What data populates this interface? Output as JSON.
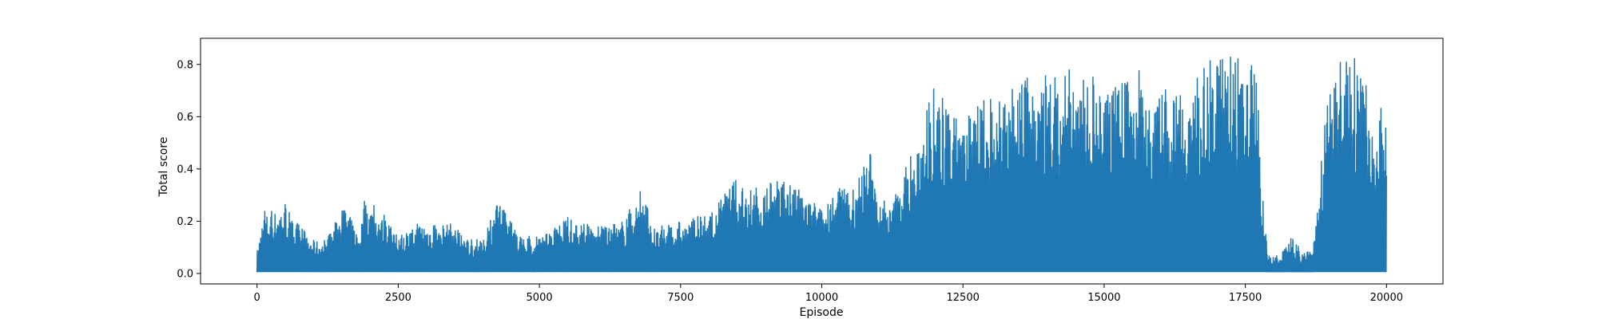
{
  "chart_data": {
    "type": "line",
    "title": "",
    "xlabel": "Episode",
    "ylabel": "Total score",
    "xlim": [
      -1000,
      21000
    ],
    "ylim": [
      -0.04,
      0.9
    ],
    "x_ticks": [
      0,
      2500,
      5000,
      7500,
      10000,
      12500,
      15000,
      17500,
      20000
    ],
    "y_ticks": [
      0.0,
      0.2,
      0.4,
      0.6,
      0.8
    ],
    "x_tick_labels": [
      "0",
      "2500",
      "5000",
      "7500",
      "10000",
      "12500",
      "15000",
      "17500",
      "20000"
    ],
    "y_tick_labels": [
      "0.0",
      "0.2",
      "0.4",
      "0.6",
      "0.8"
    ],
    "grid": false,
    "legend": "none",
    "series": [
      {
        "color": "#1f77b4",
        "description_of_values": "per-episode total score, oscillating between near 0 and a peak; points below are [episode, peak score] envelope samples, minimum stays near 0.0",
        "peak_envelope": [
          [
            0,
            0.09
          ],
          [
            100,
            0.25
          ],
          [
            300,
            0.26
          ],
          [
            450,
            0.29
          ],
          [
            600,
            0.22
          ],
          [
            900,
            0.15
          ],
          [
            1200,
            0.13
          ],
          [
            1550,
            0.29
          ],
          [
            1800,
            0.16
          ],
          [
            1900,
            0.31
          ],
          [
            2200,
            0.24
          ],
          [
            2500,
            0.14
          ],
          [
            2900,
            0.22
          ],
          [
            3200,
            0.18
          ],
          [
            3400,
            0.22
          ],
          [
            3700,
            0.13
          ],
          [
            4000,
            0.14
          ],
          [
            4300,
            0.31
          ],
          [
            4600,
            0.15
          ],
          [
            5000,
            0.14
          ],
          [
            5500,
            0.22
          ],
          [
            6000,
            0.18
          ],
          [
            6500,
            0.21
          ],
          [
            6800,
            0.34
          ],
          [
            7000,
            0.18
          ],
          [
            7500,
            0.2
          ],
          [
            7800,
            0.22
          ],
          [
            8100,
            0.24
          ],
          [
            8400,
            0.38
          ],
          [
            8700,
            0.32
          ],
          [
            9000,
            0.35
          ],
          [
            9300,
            0.37
          ],
          [
            9600,
            0.36
          ],
          [
            9900,
            0.27
          ],
          [
            10100,
            0.28
          ],
          [
            10300,
            0.33
          ],
          [
            10600,
            0.33
          ],
          [
            10850,
            0.5
          ],
          [
            11000,
            0.3
          ],
          [
            11200,
            0.28
          ],
          [
            11500,
            0.42
          ],
          [
            11700,
            0.52
          ],
          [
            11850,
            0.68
          ],
          [
            12000,
            0.75
          ],
          [
            12200,
            0.67
          ],
          [
            12500,
            0.6
          ],
          [
            12800,
            0.68
          ],
          [
            13200,
            0.69
          ],
          [
            13500,
            0.72
          ],
          [
            13750,
            0.81
          ],
          [
            14000,
            0.75
          ],
          [
            14400,
            0.79
          ],
          [
            14800,
            0.76
          ],
          [
            15000,
            0.74
          ],
          [
            15300,
            0.73
          ],
          [
            15600,
            0.82
          ],
          [
            15900,
            0.7
          ],
          [
            16000,
            0.72
          ],
          [
            16300,
            0.75
          ],
          [
            16600,
            0.78
          ],
          [
            16900,
            0.82
          ],
          [
            17100,
            0.86
          ],
          [
            17300,
            0.84
          ],
          [
            17500,
            0.82
          ],
          [
            17700,
            0.8
          ],
          [
            17800,
            0.3
          ],
          [
            17900,
            0.08
          ],
          [
            18100,
            0.07
          ],
          [
            18300,
            0.16
          ],
          [
            18500,
            0.08
          ],
          [
            18700,
            0.11
          ],
          [
            18800,
            0.35
          ],
          [
            18900,
            0.6
          ],
          [
            19000,
            0.75
          ],
          [
            19200,
            0.82
          ],
          [
            19400,
            0.85
          ],
          [
            19600,
            0.8
          ],
          [
            19800,
            0.42
          ],
          [
            19900,
            0.7
          ],
          [
            20000,
            0.69
          ]
        ]
      }
    ]
  }
}
